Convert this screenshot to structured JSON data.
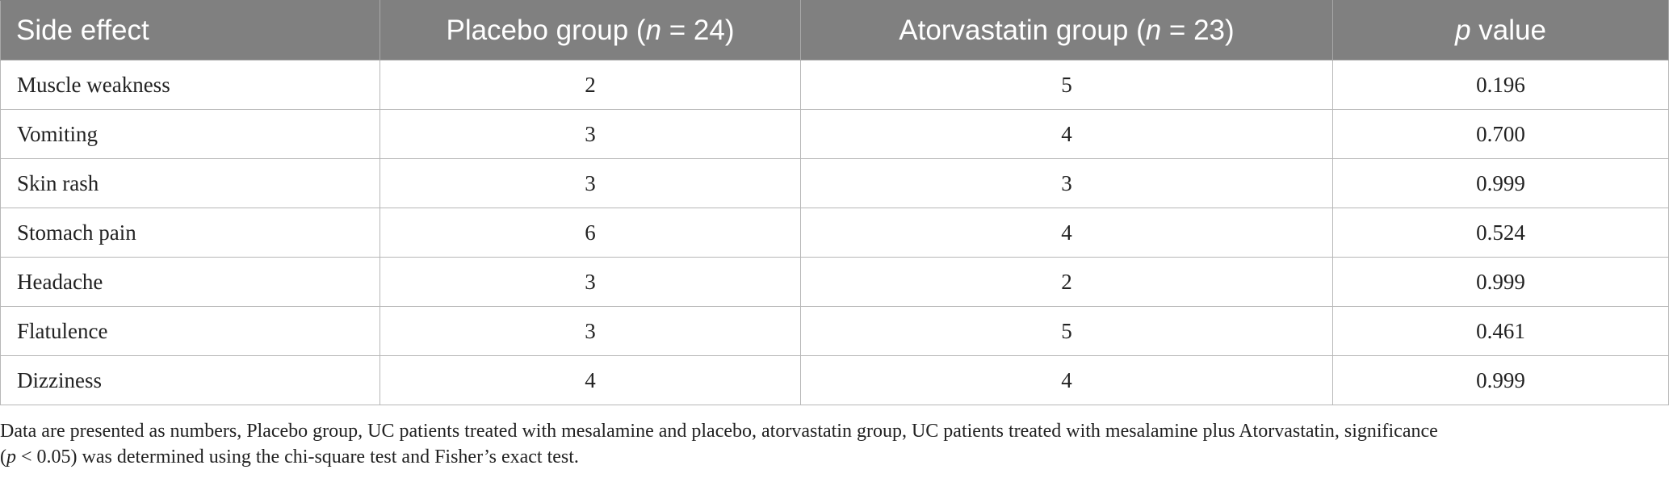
{
  "table": {
    "headers": [
      {
        "pre": "Side effect",
        "italic": "",
        "post": ""
      },
      {
        "pre": "Placebo group (",
        "italic": "n",
        "post": " = 24)"
      },
      {
        "pre": "Atorvastatin group (",
        "italic": "n",
        "post": " = 23)"
      },
      {
        "pre": "",
        "italic": "p",
        "post": " value"
      }
    ],
    "rows": [
      {
        "effect": "Muscle weakness",
        "placebo": "2",
        "atorvastatin": "5",
        "p": "0.196"
      },
      {
        "effect": "Vomiting",
        "placebo": "3",
        "atorvastatin": "4",
        "p": "0.700"
      },
      {
        "effect": "Skin rash",
        "placebo": "3",
        "atorvastatin": "3",
        "p": "0.999"
      },
      {
        "effect": "Stomach pain",
        "placebo": "6",
        "atorvastatin": "4",
        "p": "0.524"
      },
      {
        "effect": "Headache",
        "placebo": "3",
        "atorvastatin": "2",
        "p": "0.999"
      },
      {
        "effect": "Flatulence",
        "placebo": "3",
        "atorvastatin": "5",
        "p": "0.461"
      },
      {
        "effect": "Dizziness",
        "placebo": "4",
        "atorvastatin": "4",
        "p": "0.999"
      }
    ]
  },
  "footnote": {
    "line1": "Data are presented as numbers, Placebo group, UC patients treated with mesalamine and placebo, atorvastatin group, UC patients treated with mesalamine plus Atorvastatin, significance",
    "line2_open": "(",
    "line2_italic": "p",
    "line2_rest": " < 0.05) was determined using the chi-square test and Fisher’s exact test."
  }
}
